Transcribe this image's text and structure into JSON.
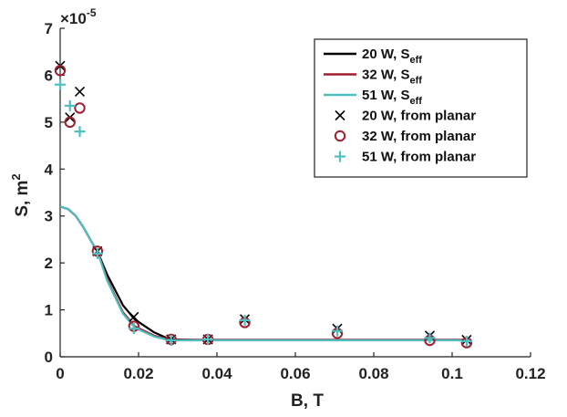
{
  "chart_data": {
    "type": "line",
    "xlabel": "B, T",
    "ylabel_main": "S, m",
    "ylabel_sup": "2",
    "y_multiplier_base": "×10",
    "y_multiplier_exp": "-5",
    "xlim": [
      0,
      0.12
    ],
    "ylim": [
      0,
      7
    ],
    "x_ticks": [
      "0",
      "0.02",
      "0.04",
      "0.06",
      "0.08",
      "0.1",
      "0.12"
    ],
    "y_ticks": [
      "0",
      "1",
      "2",
      "3",
      "4",
      "5",
      "6",
      "7"
    ],
    "grid": false,
    "legend_position": "top-right",
    "series": [
      {
        "name": "20 W, S",
        "name_sub": "eff",
        "kind": "line",
        "color": "#000000",
        "x": [
          0,
          0.002,
          0.004,
          0.006,
          0.008,
          0.0095,
          0.012,
          0.016,
          0.019,
          0.024,
          0.028,
          0.035,
          0.05,
          0.07,
          0.09,
          0.104
        ],
        "y": [
          3.2,
          3.15,
          3.0,
          2.75,
          2.45,
          2.25,
          1.75,
          1.1,
          0.8,
          0.52,
          0.37,
          0.36,
          0.36,
          0.36,
          0.36,
          0.36
        ]
      },
      {
        "name": "32 W, S",
        "name_sub": "eff",
        "kind": "line",
        "color": "#a01f2e",
        "x": [
          0,
          0.002,
          0.004,
          0.006,
          0.008,
          0.0095,
          0.012,
          0.016,
          0.019,
          0.024,
          0.028,
          0.035,
          0.05,
          0.07,
          0.09,
          0.104
        ],
        "y": [
          3.2,
          3.15,
          3.0,
          2.75,
          2.45,
          2.25,
          1.65,
          0.95,
          0.65,
          0.45,
          0.36,
          0.36,
          0.36,
          0.36,
          0.36,
          0.36
        ]
      },
      {
        "name": "51 W, S",
        "name_sub": "eff",
        "kind": "line",
        "color": "#4fbfc0",
        "x": [
          0,
          0.002,
          0.004,
          0.006,
          0.008,
          0.0095,
          0.012,
          0.016,
          0.019,
          0.024,
          0.028,
          0.035,
          0.05,
          0.07,
          0.09,
          0.104
        ],
        "y": [
          3.2,
          3.15,
          3.0,
          2.75,
          2.45,
          2.25,
          1.62,
          0.92,
          0.62,
          0.43,
          0.35,
          0.35,
          0.35,
          0.35,
          0.35,
          0.35
        ]
      },
      {
        "name": "20 W, from planar",
        "kind": "marker",
        "marker": "x",
        "color": "#000000",
        "x": [
          0,
          0.0025,
          0.005,
          0.0095,
          0.0188,
          0.0283,
          0.0377,
          0.0471,
          0.0707,
          0.0943,
          0.1037
        ],
        "y": [
          6.2,
          5.1,
          5.65,
          2.25,
          0.85,
          0.37,
          0.37,
          0.8,
          0.6,
          0.45,
          0.36
        ]
      },
      {
        "name": "32 W, from planar",
        "kind": "marker",
        "marker": "o",
        "color": "#a01f2e",
        "x": [
          0,
          0.0025,
          0.005,
          0.0095,
          0.0188,
          0.0283,
          0.0377,
          0.0471,
          0.0707,
          0.0943,
          0.1037
        ],
        "y": [
          6.1,
          5.0,
          5.3,
          2.25,
          0.65,
          0.37,
          0.37,
          0.73,
          0.5,
          0.35,
          0.3
        ]
      },
      {
        "name": "51 W, from planar",
        "kind": "marker",
        "marker": "+",
        "color": "#4fbfc0",
        "x": [
          0,
          0.0025,
          0.005,
          0.0095,
          0.0188,
          0.0283,
          0.0377,
          0.0471,
          0.0707,
          0.0943,
          0.1037
        ],
        "y": [
          5.8,
          5.35,
          4.8,
          2.2,
          0.6,
          0.35,
          0.37,
          0.78,
          0.55,
          0.4,
          0.33
        ]
      }
    ]
  }
}
